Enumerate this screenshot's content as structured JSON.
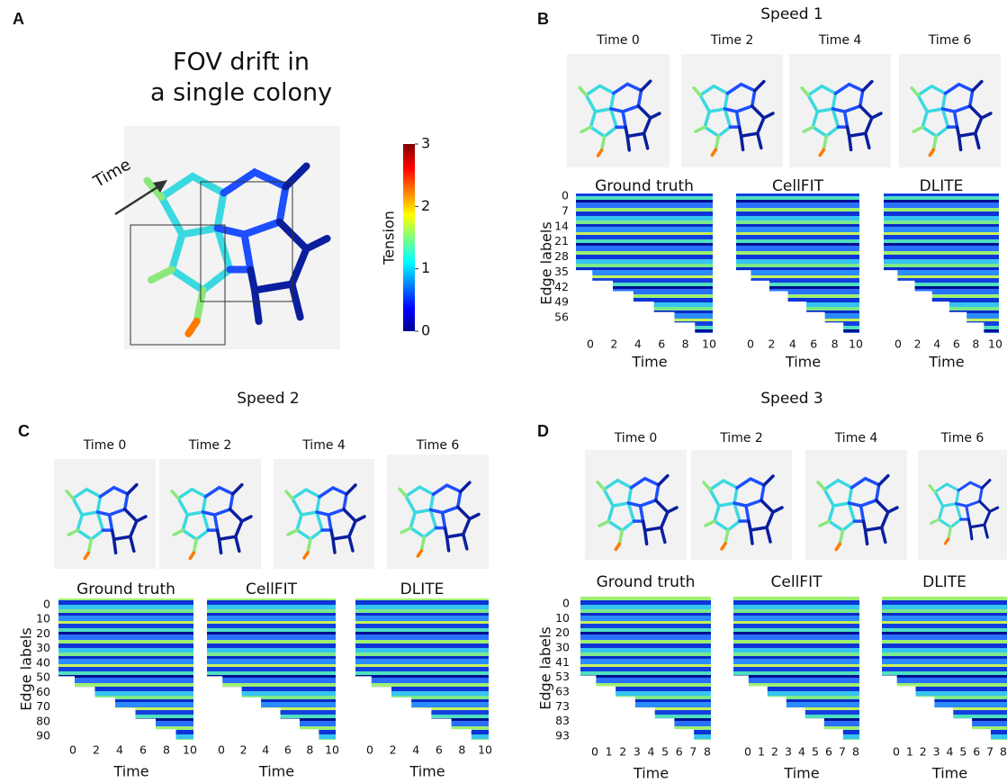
{
  "panel_a": {
    "label": "A",
    "title_lines": [
      "FOV drift in",
      "a single colony"
    ],
    "arrow_label": "Time",
    "colorbar": {
      "label": "Tension",
      "ticks": [
        0,
        1,
        2,
        3
      ]
    }
  },
  "panels": [
    {
      "label": "B",
      "title": "Speed 1",
      "frames": [
        "Time 0",
        "Time 2",
        "Time 4",
        "Time 6"
      ],
      "ylabel": "Edge labels",
      "yticks": [
        0,
        7,
        14,
        21,
        28,
        35,
        42,
        49,
        56
      ],
      "heatmaps": [
        {
          "title": "Ground truth",
          "xticks": [
            0,
            2,
            4,
            6,
            8,
            10
          ],
          "xlabel": "Time"
        },
        {
          "title": "CellFIT",
          "xticks": [
            0,
            2,
            4,
            6,
            8,
            10
          ],
          "xlabel": "Time"
        },
        {
          "title": "DLITE",
          "xticks": [
            0,
            2,
            4,
            6,
            8,
            10
          ],
          "xlabel": "Time"
        }
      ]
    },
    {
      "label": "C",
      "title": "Speed 2",
      "frames": [
        "Time 0",
        "Time 2",
        "Time 4",
        "Time 6"
      ],
      "ylabel": "Edge labels",
      "yticks": [
        0,
        10,
        20,
        30,
        40,
        50,
        60,
        70,
        80,
        90
      ],
      "heatmaps": [
        {
          "title": "Ground truth",
          "xticks": [
            0,
            2,
            4,
            6,
            8,
            10
          ],
          "xlabel": "Time"
        },
        {
          "title": "CellFIT",
          "xticks": [
            0,
            2,
            4,
            6,
            8,
            10
          ],
          "xlabel": "Time"
        },
        {
          "title": "DLITE",
          "xticks": [
            0,
            2,
            4,
            6,
            8,
            10
          ],
          "xlabel": "Time"
        }
      ]
    },
    {
      "label": "D",
      "title": "Speed 3",
      "frames": [
        "Time 0",
        "Time 2",
        "Time 4",
        "Time 6"
      ],
      "ylabel": "Edge labels",
      "yticks": [
        0,
        10,
        20,
        30,
        41,
        53,
        63,
        73,
        83,
        93
      ],
      "heatmaps": [
        {
          "title": "Ground truth",
          "xticks": [
            0,
            1,
            2,
            3,
            4,
            5,
            6,
            7,
            8
          ],
          "xlabel": "Time"
        },
        {
          "title": "CellFIT",
          "xticks": [
            0,
            1,
            2,
            3,
            4,
            5,
            6,
            7,
            8
          ],
          "xlabel": "Time"
        },
        {
          "title": "DLITE",
          "xticks": [
            0,
            1,
            2,
            3,
            4,
            5,
            6,
            7,
            8
          ],
          "xlabel": "Time"
        }
      ]
    }
  ]
}
